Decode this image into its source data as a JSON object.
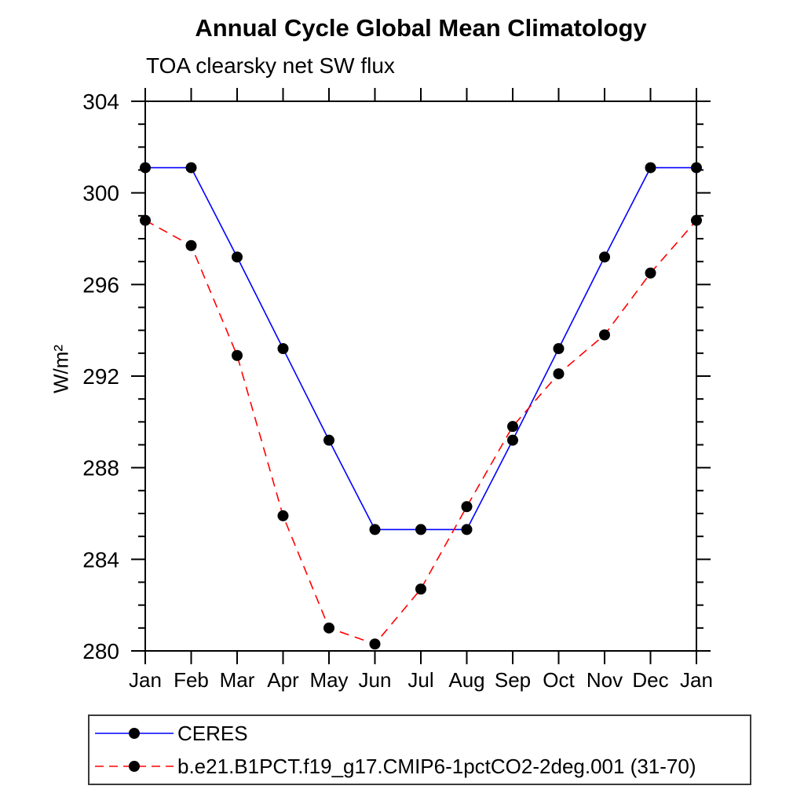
{
  "chart_data": {
    "type": "line",
    "title": "Annual Cycle Global Mean Climatology",
    "subtitle": "TOA clearsky net SW flux",
    "ylabel": "W/m²",
    "xlabel": "",
    "categories": [
      "Jan",
      "Feb",
      "Mar",
      "Apr",
      "May",
      "Jun",
      "Jul",
      "Aug",
      "Sep",
      "Oct",
      "Nov",
      "Dec",
      "Jan"
    ],
    "ylim": [
      280,
      304
    ],
    "ytick_major_step": 4,
    "ytick_minor_step": 1,
    "ytick_labels": [
      "280",
      "284",
      "288",
      "292",
      "296",
      "300",
      "304"
    ],
    "grid": false,
    "legend_position": "bottom-left",
    "frame_color": "#000000",
    "marker_color": "#000000",
    "series": [
      {
        "name": "CERES",
        "color": "#0000ff",
        "line_style": "solid",
        "marker": "circle",
        "values": [
          301.1,
          301.1,
          297.2,
          293.2,
          289.2,
          285.3,
          285.3,
          285.3,
          289.2,
          293.2,
          297.2,
          301.1,
          301.1
        ]
      },
      {
        "name": "b.e21.B1PCT.f19_g17.CMIP6-1pctCO2-2deg.001 (31-70)",
        "color": "#ff0000",
        "line_style": "dashed",
        "marker": "circle",
        "values": [
          298.8,
          297.7,
          292.9,
          285.9,
          281.0,
          280.3,
          282.7,
          286.3,
          289.8,
          292.1,
          293.8,
          296.5,
          298.8
        ]
      }
    ]
  }
}
